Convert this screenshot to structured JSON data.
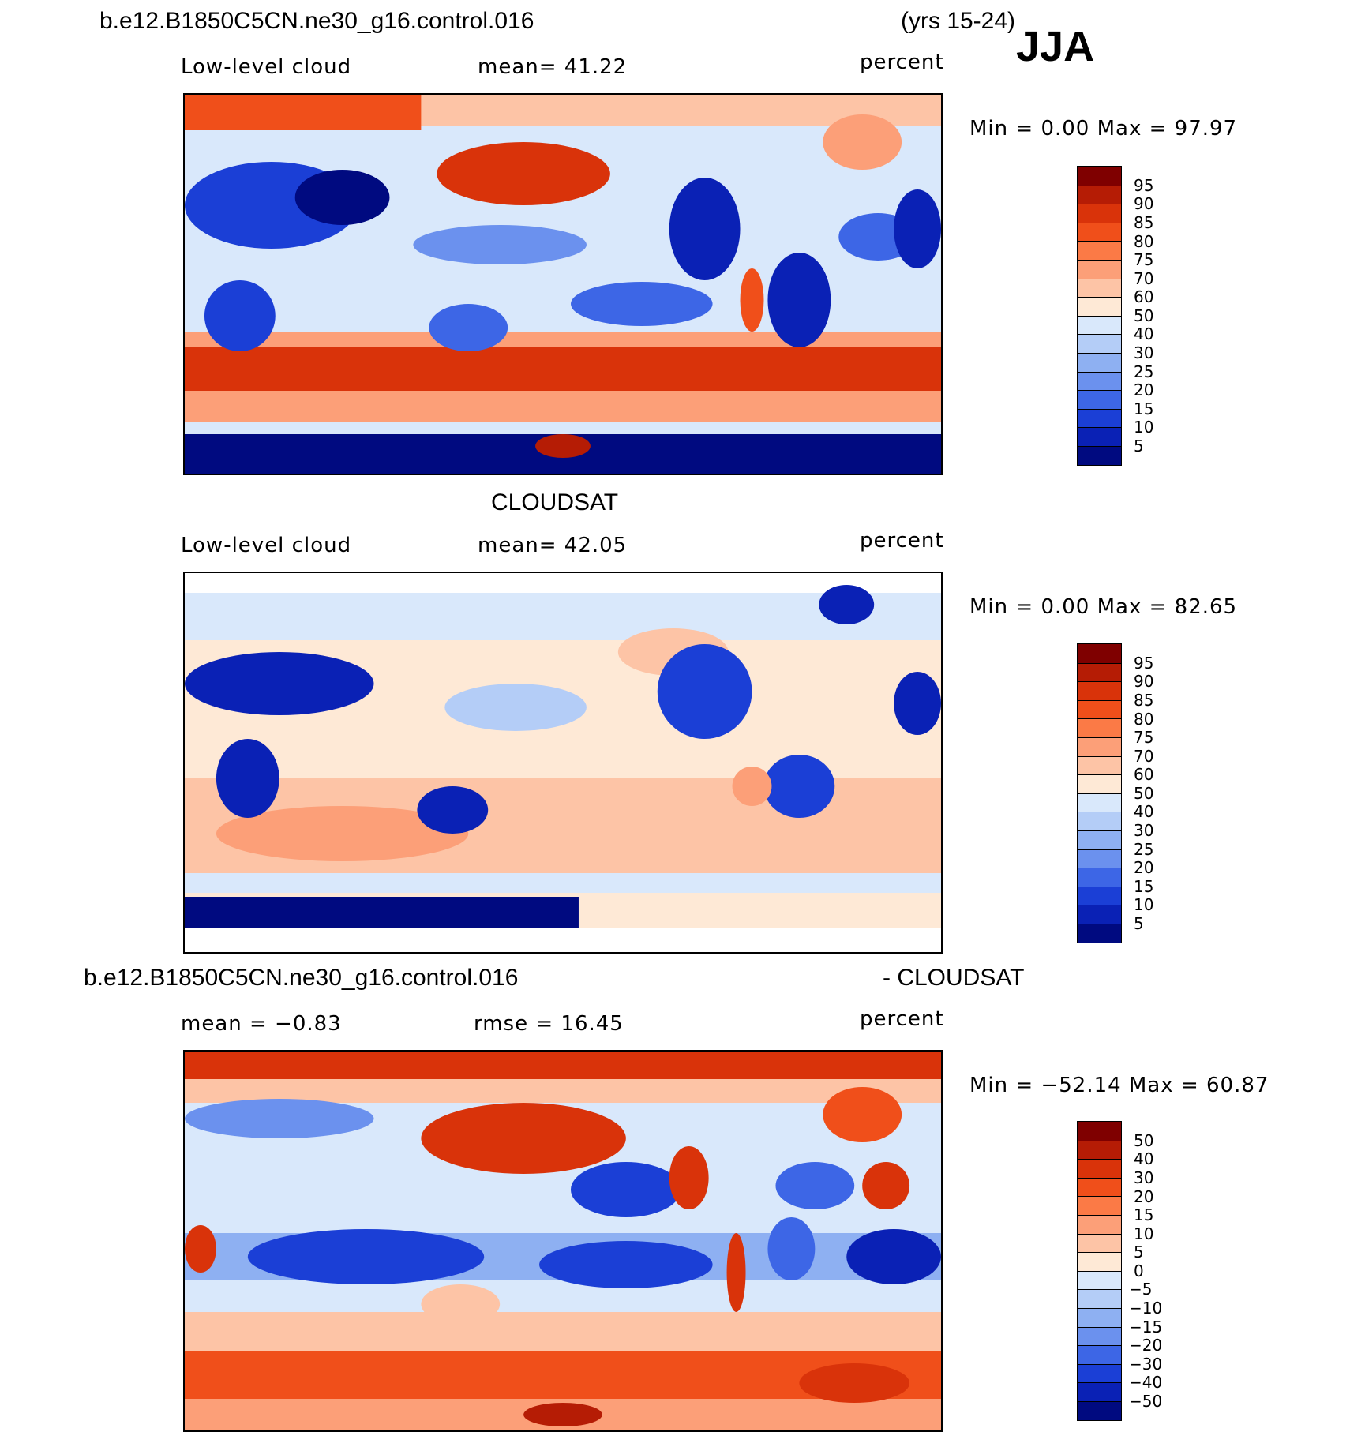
{
  "header": {
    "case_name": "b.e12.B1850C5CN.ne30_g16.control.016",
    "years": "(yrs 15-24)",
    "season": "JJA"
  },
  "panels": [
    {
      "id": "model",
      "title": "",
      "left_label": "Low-level cloud",
      "center_label": "mean=  41.22",
      "units": "percent",
      "minmax": "Min =   0.00 Max =  97.97",
      "colorbar_labels": [
        "95",
        "90",
        "85",
        "80",
        "75",
        "70",
        "60",
        "50",
        "40",
        "30",
        "25",
        "20",
        "15",
        "10",
        "5"
      ]
    },
    {
      "id": "obs",
      "title": "CLOUDSAT",
      "left_label": "Low-level cloud",
      "center_label": "mean=  42.05",
      "units": "percent",
      "minmax": "Min =   0.00 Max =  82.65",
      "colorbar_labels": [
        "95",
        "90",
        "85",
        "80",
        "75",
        "70",
        "60",
        "50",
        "40",
        "30",
        "25",
        "20",
        "15",
        "10",
        "5"
      ]
    },
    {
      "id": "diff",
      "title_left": "b.e12.B1850C5CN.ne30_g16.control.016",
      "title_right": "- CLOUDSAT",
      "left_label": "mean =  −0.83",
      "center_label": "rmse =  16.45",
      "units": "percent",
      "minmax": "Min = −52.14 Max =  60.87",
      "colorbar_labels": [
        "50",
        "40",
        "30",
        "20",
        "15",
        "10",
        "5",
        "0",
        "−5",
        "−10",
        "−15",
        "−20",
        "−30",
        "−40",
        "−50"
      ]
    }
  ],
  "colors": {
    "abs_scale": [
      "#7f0000",
      "#b51c05",
      "#d9330a",
      "#f04f1a",
      "#fb7a46",
      "#fc9f78",
      "#fdc4a6",
      "#fee9d6",
      "#d9e8fb",
      "#b4cdf7",
      "#8eb0f2",
      "#6b91ee",
      "#3d66e6",
      "#1b3fd6",
      "#0a21b5",
      "#000a80"
    ],
    "diff_scale": [
      "#7f0000",
      "#b51c05",
      "#d9330a",
      "#f04f1a",
      "#fb7a46",
      "#fc9f78",
      "#fdc4a6",
      "#fee9d6",
      "#d9e8fb",
      "#b4cdf7",
      "#8eb0f2",
      "#6b91ee",
      "#3d66e6",
      "#1b3fd6",
      "#0a21b5",
      "#000a80"
    ]
  }
}
